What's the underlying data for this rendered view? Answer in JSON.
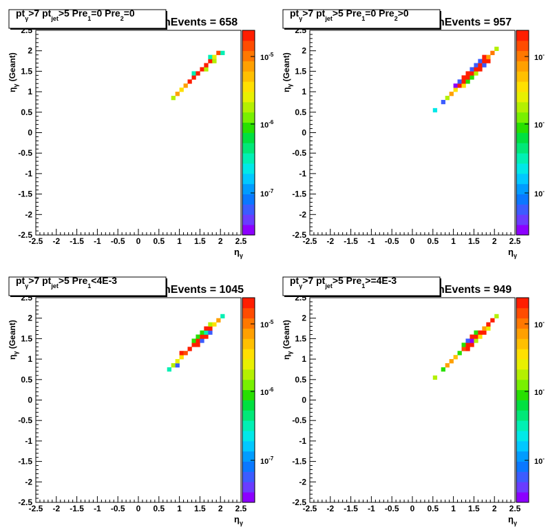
{
  "panels": [
    {
      "title_parts": [
        "pt",
        "γ",
        ">7  pt",
        "jet",
        ">5 Pre",
        "1",
        "=0 Pre",
        "2",
        "=0"
      ],
      "nevents": "nEvents = 658",
      "xlabel": "η",
      "xlabel_sub": "γ",
      "ylabel": "η",
      "ylabel_sub": "γ",
      "ylabel_suffix": "(Geant)",
      "color_ticks": [
        "10",
        "10",
        "10"
      ],
      "color_exps": [
        "-5",
        "-6",
        "-7"
      ]
    },
    {
      "title_parts": [
        "pt",
        "γ",
        ">7  pt",
        "jet",
        ">5 Pre",
        "1",
        "=0 Pre",
        "2",
        ">0"
      ],
      "nevents": "nEvents = 957",
      "xlabel": "η",
      "xlabel_sub": "γ",
      "ylabel": "η",
      "ylabel_sub": "γ",
      "ylabel_suffix": "(Geant)",
      "color_ticks": [
        "10",
        "10",
        "10"
      ],
      "color_exps": [
        "-",
        "-",
        "-"
      ]
    },
    {
      "title_parts": [
        "pt",
        "γ",
        ">7  pt",
        "jet",
        ">5 Pre",
        "1",
        "<4E-3",
        "",
        ""
      ],
      "nevents": "nEvents = 1045",
      "xlabel": "η",
      "xlabel_sub": "γ",
      "ylabel": "η",
      "ylabel_sub": "γ",
      "ylabel_suffix": "(Geant)",
      "color_ticks": [
        "10",
        "10",
        "10"
      ],
      "color_exps": [
        "-5",
        "-6",
        "-7"
      ]
    },
    {
      "title_parts": [
        "pt",
        "γ",
        ">7  pt",
        "jet",
        ">5 Pre",
        "1",
        ">=4E-3",
        "",
        ""
      ],
      "nevents": "nEvents = 949",
      "xlabel": "η",
      "xlabel_sub": "γ",
      "ylabel": "η",
      "ylabel_sub": "γ",
      "ylabel_suffix": "(Geant)",
      "color_ticks": [
        "10",
        "10",
        "10"
      ],
      "color_exps": [
        "-",
        "-",
        "-"
      ]
    }
  ],
  "chart_data": [
    {
      "type": "heatmap",
      "xlim": [
        -2.5,
        2.5
      ],
      "ylim": [
        -2.5,
        2.5
      ],
      "x_ticks": [
        "-2.5",
        "-2",
        "-1.5",
        "-1",
        "-0.5",
        "0",
        "0.5",
        "1",
        "1.5",
        "2",
        "2.5"
      ],
      "y_ticks": [
        "-2.5",
        "-2",
        "-1.5",
        "-1",
        "-0.5",
        "0",
        "0.5",
        "1",
        "1.5",
        "2",
        "2.5"
      ],
      "z_scale": "log",
      "z_range": [
        4e-08,
        2.5e-05
      ],
      "cells": [
        {
          "x": 0.85,
          "y": 0.85,
          "z": 2e-06
        },
        {
          "x": 0.95,
          "y": 0.95,
          "z": 8e-06
        },
        {
          "x": 1.05,
          "y": 1.05,
          "z": 4e-06
        },
        {
          "x": 1.15,
          "y": 1.15,
          "z": 8e-06
        },
        {
          "x": 1.25,
          "y": 1.25,
          "z": 2.5e-05
        },
        {
          "x": 1.35,
          "y": 1.35,
          "z": 2.5e-05
        },
        {
          "x": 1.35,
          "y": 1.45,
          "z": 5e-07
        },
        {
          "x": 1.45,
          "y": 1.45,
          "z": 2.5e-05
        },
        {
          "x": 1.55,
          "y": 1.55,
          "z": 2.5e-05
        },
        {
          "x": 1.65,
          "y": 1.55,
          "z": 2e-06
        },
        {
          "x": 1.65,
          "y": 1.65,
          "z": 2.5e-05
        },
        {
          "x": 1.75,
          "y": 1.75,
          "z": 2.5e-05
        },
        {
          "x": 1.75,
          "y": 1.85,
          "z": 5e-07
        },
        {
          "x": 1.85,
          "y": 1.85,
          "z": 3e-06
        },
        {
          "x": 1.85,
          "y": 1.75,
          "z": 2e-06
        },
        {
          "x": 1.95,
          "y": 1.95,
          "z": 1.5e-05
        },
        {
          "x": 2.05,
          "y": 1.95,
          "z": 5e-07
        }
      ]
    },
    {
      "type": "heatmap",
      "xlim": [
        -2.5,
        2.5
      ],
      "ylim": [
        -2.5,
        2.5
      ],
      "x_ticks": [
        "-2.5",
        "-2",
        "-1.5",
        "-1",
        "-0.5",
        "0",
        "0.5",
        "1",
        "1.5",
        "2",
        "2.5"
      ],
      "y_ticks": [
        "-2.5",
        "-2",
        "-1.5",
        "-1",
        "-0.5",
        "0",
        "0.5",
        "1",
        "1.5",
        "2",
        "2.5"
      ],
      "z_scale": "log",
      "z_range": [
        4e-08,
        2.5e-05
      ],
      "cells": [
        {
          "x": 0.55,
          "y": 0.55,
          "z": 3e-07
        },
        {
          "x": 0.75,
          "y": 0.75,
          "z": 1e-07
        },
        {
          "x": 0.85,
          "y": 0.85,
          "z": 2e-06
        },
        {
          "x": 0.95,
          "y": 0.95,
          "z": 8e-06
        },
        {
          "x": 1.05,
          "y": 1.05,
          "z": 4e-06
        },
        {
          "x": 1.05,
          "y": 1.15,
          "z": 5e-08
        },
        {
          "x": 1.15,
          "y": 1.15,
          "z": 2.5e-05
        },
        {
          "x": 1.15,
          "y": 1.25,
          "z": 1e-07
        },
        {
          "x": 1.25,
          "y": 1.15,
          "z": 4e-06
        },
        {
          "x": 1.25,
          "y": 1.25,
          "z": 2.5e-05
        },
        {
          "x": 1.25,
          "y": 1.35,
          "z": 2.5e-05
        },
        {
          "x": 1.35,
          "y": 1.25,
          "z": 1e-06
        },
        {
          "x": 1.35,
          "y": 1.35,
          "z": 2.5e-05
        },
        {
          "x": 1.35,
          "y": 1.45,
          "z": 2.5e-05
        },
        {
          "x": 1.45,
          "y": 1.35,
          "z": 1e-06
        },
        {
          "x": 1.45,
          "y": 1.45,
          "z": 2.5e-05
        },
        {
          "x": 1.45,
          "y": 1.55,
          "z": 1e-07
        },
        {
          "x": 1.55,
          "y": 1.45,
          "z": 2e-06
        },
        {
          "x": 1.55,
          "y": 1.55,
          "z": 2.5e-05
        },
        {
          "x": 1.55,
          "y": 1.65,
          "z": 1e-07
        },
        {
          "x": 1.65,
          "y": 1.55,
          "z": 2.5e-05
        },
        {
          "x": 1.65,
          "y": 1.65,
          "z": 2.5e-05
        },
        {
          "x": 1.65,
          "y": 1.75,
          "z": 1e-07
        },
        {
          "x": 1.75,
          "y": 1.65,
          "z": 1e-07
        },
        {
          "x": 1.75,
          "y": 1.75,
          "z": 2.5e-05
        },
        {
          "x": 1.75,
          "y": 1.85,
          "z": 2.5e-05
        },
        {
          "x": 1.85,
          "y": 1.75,
          "z": 2.5e-05
        },
        {
          "x": 1.85,
          "y": 1.85,
          "z": 8e-06
        },
        {
          "x": 1.95,
          "y": 1.95,
          "z": 1.2e-05
        },
        {
          "x": 2.05,
          "y": 2.05,
          "z": 2e-06
        }
      ]
    },
    {
      "type": "heatmap",
      "xlim": [
        -2.5,
        2.5
      ],
      "ylim": [
        -2.5,
        2.5
      ],
      "x_ticks": [
        "-2.5",
        "-2",
        "-1.5",
        "-1",
        "-0.5",
        "0",
        "0.5",
        "1",
        "1.5",
        "2",
        "2.5"
      ],
      "y_ticks": [
        "-2.5",
        "-2",
        "-1.5",
        "-1",
        "-0.5",
        "0",
        "0.5",
        "1",
        "1.5",
        "2",
        "2.5"
      ],
      "z_scale": "log",
      "z_range": [
        4e-08,
        2.5e-05
      ],
      "cells": [
        {
          "x": 0.75,
          "y": 0.75,
          "z": 5e-07
        },
        {
          "x": 0.85,
          "y": 0.85,
          "z": 2e-06
        },
        {
          "x": 0.95,
          "y": 0.85,
          "z": 1e-07
        },
        {
          "x": 0.95,
          "y": 0.95,
          "z": 3e-06
        },
        {
          "x": 1.05,
          "y": 1.05,
          "z": 4e-06
        },
        {
          "x": 1.05,
          "y": 1.15,
          "z": 2.5e-05
        },
        {
          "x": 1.15,
          "y": 1.15,
          "z": 1.5e-05
        },
        {
          "x": 1.25,
          "y": 1.25,
          "z": 2.5e-05
        },
        {
          "x": 1.35,
          "y": 1.35,
          "z": 2.5e-05
        },
        {
          "x": 1.35,
          "y": 1.45,
          "z": 1e-06
        },
        {
          "x": 1.45,
          "y": 1.35,
          "z": 2.5e-05
        },
        {
          "x": 1.45,
          "y": 1.45,
          "z": 2.5e-05
        },
        {
          "x": 1.45,
          "y": 1.55,
          "z": 1e-06
        },
        {
          "x": 1.55,
          "y": 1.45,
          "z": 1e-07
        },
        {
          "x": 1.55,
          "y": 1.55,
          "z": 2.5e-05
        },
        {
          "x": 1.55,
          "y": 1.65,
          "z": 1e-06
        },
        {
          "x": 1.65,
          "y": 1.55,
          "z": 2.5e-05
        },
        {
          "x": 1.65,
          "y": 1.65,
          "z": 5e-07
        },
        {
          "x": 1.65,
          "y": 1.75,
          "z": 2.5e-05
        },
        {
          "x": 1.75,
          "y": 1.65,
          "z": 1e-07
        },
        {
          "x": 1.75,
          "y": 1.75,
          "z": 2.5e-05
        },
        {
          "x": 1.75,
          "y": 1.85,
          "z": 2e-06
        },
        {
          "x": 1.85,
          "y": 1.85,
          "z": 4e-06
        },
        {
          "x": 1.95,
          "y": 1.95,
          "z": 8e-06
        },
        {
          "x": 2.05,
          "y": 2.05,
          "z": 5e-07
        }
      ]
    },
    {
      "type": "heatmap",
      "xlim": [
        -2.5,
        2.5
      ],
      "ylim": [
        -2.5,
        2.5
      ],
      "x_ticks": [
        "-2.5",
        "-2",
        "-1.5",
        "-1",
        "-0.5",
        "0",
        "0.5",
        "1",
        "1.5",
        "2",
        "2.5"
      ],
      "y_ticks": [
        "-2.5",
        "-2",
        "-1.5",
        "-1",
        "-0.5",
        "0",
        "0.5",
        "1",
        "1.5",
        "2",
        "2.5"
      ],
      "z_scale": "log",
      "z_range": [
        4e-08,
        2.5e-05
      ],
      "cells": [
        {
          "x": 0.55,
          "y": 0.55,
          "z": 2e-06
        },
        {
          "x": 0.75,
          "y": 0.75,
          "z": 1e-06
        },
        {
          "x": 0.85,
          "y": 0.85,
          "z": 8e-06
        },
        {
          "x": 0.95,
          "y": 0.95,
          "z": 8e-06
        },
        {
          "x": 1.05,
          "y": 1.05,
          "z": 6e-06
        },
        {
          "x": 1.15,
          "y": 1.15,
          "z": 1e-06
        },
        {
          "x": 1.25,
          "y": 1.25,
          "z": 1.5e-05
        },
        {
          "x": 1.25,
          "y": 1.35,
          "z": 1e-06
        },
        {
          "x": 1.35,
          "y": 1.25,
          "z": 2.5e-05
        },
        {
          "x": 1.35,
          "y": 1.35,
          "z": 2.5e-05
        },
        {
          "x": 1.35,
          "y": 1.45,
          "z": 1e-07
        },
        {
          "x": 1.45,
          "y": 1.35,
          "z": 2.5e-05
        },
        {
          "x": 1.45,
          "y": 1.45,
          "z": 5e-08
        },
        {
          "x": 1.45,
          "y": 1.55,
          "z": 2.5e-05
        },
        {
          "x": 1.55,
          "y": 1.45,
          "z": 2e-06
        },
        {
          "x": 1.55,
          "y": 1.55,
          "z": 2.5e-05
        },
        {
          "x": 1.55,
          "y": 1.65,
          "z": 1e-06
        },
        {
          "x": 1.65,
          "y": 1.55,
          "z": 4e-06
        },
        {
          "x": 1.65,
          "y": 1.65,
          "z": 2.5e-05
        },
        {
          "x": 1.75,
          "y": 1.65,
          "z": 2.5e-05
        },
        {
          "x": 1.75,
          "y": 1.75,
          "z": 8e-06
        },
        {
          "x": 1.85,
          "y": 1.75,
          "z": 3e-06
        },
        {
          "x": 1.85,
          "y": 1.85,
          "z": 2.5e-05
        },
        {
          "x": 1.95,
          "y": 1.95,
          "z": 2.5e-05
        },
        {
          "x": 2.05,
          "y": 2.05,
          "z": 2e-06
        }
      ]
    }
  ]
}
